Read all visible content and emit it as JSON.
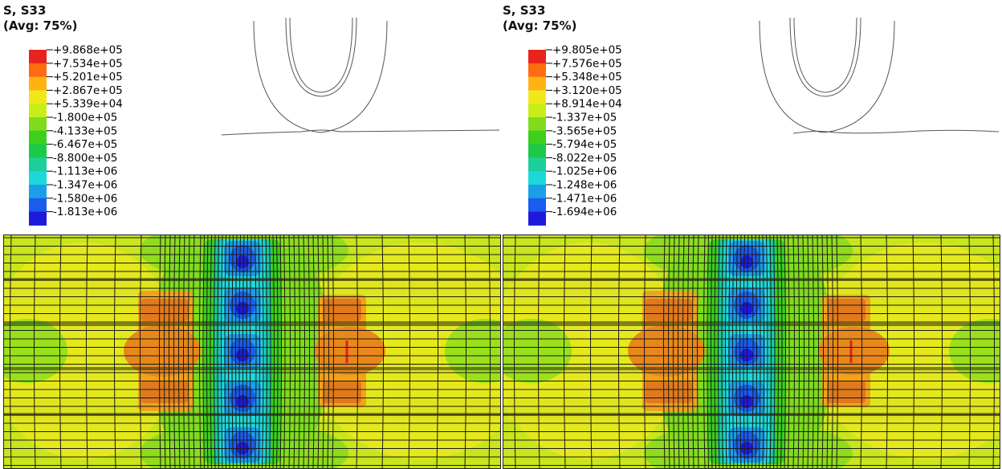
{
  "panels": [
    {
      "legend": {
        "title": "S, S33",
        "subtitle": "(Avg: 75%)",
        "ticks": [
          "+9.868e+05",
          "+7.534e+05",
          "+5.201e+05",
          "+2.867e+05",
          "+5.339e+04",
          "-1.800e+05",
          "-4.133e+05",
          "-6.467e+05",
          "-8.800e+05",
          "-1.113e+06",
          "-1.347e+06",
          "-1.580e+06",
          "-1.813e+06"
        ]
      }
    },
    {
      "legend": {
        "title": "S, S33",
        "subtitle": "(Avg: 75%)",
        "ticks": [
          "+9.805e+05",
          "+7.576e+05",
          "+5.348e+05",
          "+3.120e+05",
          "+8.914e+04",
          "-1.337e+05",
          "-3.565e+05",
          "-5.794e+05",
          "-8.022e+05",
          "-1.025e+06",
          "-1.248e+06",
          "-1.471e+06",
          "-1.694e+06"
        ]
      }
    }
  ],
  "colors": {
    "scale": [
      "#e8231c",
      "#ff6a12",
      "#ffb214",
      "#f0e81a",
      "#c8ee1a",
      "#7edc1c",
      "#3ccf1c",
      "#1cc84a",
      "#1ccf9a",
      "#1cd8d8",
      "#1a9ee8",
      "#1a5cee",
      "#1e1adc"
    ],
    "mesh_line": "#1a1a1a",
    "outline": "#555555"
  }
}
